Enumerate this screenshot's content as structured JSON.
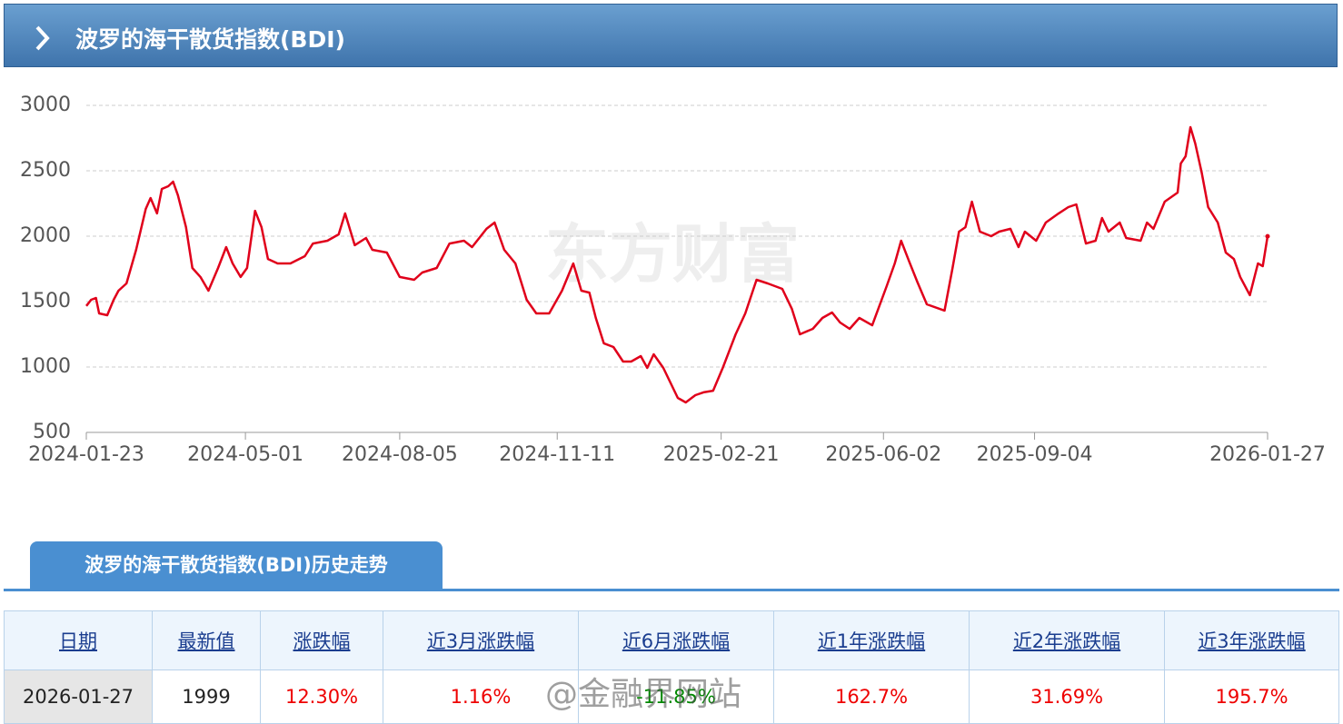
{
  "header": {
    "title": "波罗的海干散货指数(BDI)"
  },
  "chart_data": {
    "type": "line",
    "color": "#e0001b",
    "grid": true,
    "watermark": "东方财富",
    "x": [
      "2024-01-23",
      "2024-01-26",
      "2024-01-29",
      "2024-01-31",
      "2024-02-05",
      "2024-02-09",
      "2024-02-12",
      "2024-02-17",
      "2024-02-23",
      "2024-02-29",
      "2024-03-03",
      "2024-03-07",
      "2024-03-10",
      "2024-03-14",
      "2024-03-17",
      "2024-03-20",
      "2024-03-25",
      "2024-03-29",
      "2024-04-03",
      "2024-04-08",
      "2024-04-14",
      "2024-04-19",
      "2024-04-23",
      "2024-04-28",
      "2024-05-02",
      "2024-05-07",
      "2024-05-11",
      "2024-05-15",
      "2024-05-21",
      "2024-05-29",
      "2024-06-07",
      "2024-06-12",
      "2024-06-21",
      "2024-06-28",
      "2024-07-02",
      "2024-07-08",
      "2024-07-15",
      "2024-07-19",
      "2024-07-28",
      "2024-08-05",
      "2024-08-14",
      "2024-08-19",
      "2024-08-28",
      "2024-09-05",
      "2024-09-14",
      "2024-09-19",
      "2024-09-28",
      "2024-10-03",
      "2024-10-09",
      "2024-10-16",
      "2024-10-23",
      "2024-10-29",
      "2024-11-06",
      "2024-11-14",
      "2024-11-21",
      "2024-11-26",
      "2024-12-01",
      "2024-12-05",
      "2024-12-10",
      "2024-12-16",
      "2024-12-22",
      "2024-12-27",
      "2025-01-02",
      "2025-01-06",
      "2025-01-10",
      "2025-01-16",
      "2025-01-25",
      "2025-01-30",
      "2025-02-05",
      "2025-02-10",
      "2025-02-16",
      "2025-02-22",
      "2025-03-02",
      "2025-03-08",
      "2025-03-15",
      "2025-03-22",
      "2025-03-31",
      "2025-04-06",
      "2025-04-11",
      "2025-04-19",
      "2025-04-25",
      "2025-05-01",
      "2025-05-06",
      "2025-05-12",
      "2025-05-18",
      "2025-05-26",
      "2025-06-04",
      "2025-06-09",
      "2025-06-13",
      "2025-06-18",
      "2025-06-23",
      "2025-06-29",
      "2025-07-10",
      "2025-07-15",
      "2025-07-19",
      "2025-07-23",
      "2025-07-27",
      "2025-08-01",
      "2025-08-08",
      "2025-08-13",
      "2025-08-20",
      "2025-08-25",
      "2025-08-29",
      "2025-09-05",
      "2025-09-11",
      "2025-09-19",
      "2025-09-25",
      "2025-09-30",
      "2025-10-06",
      "2025-10-12",
      "2025-10-16",
      "2025-10-20",
      "2025-10-27",
      "2025-10-31",
      "2025-11-09",
      "2025-11-13",
      "2025-11-17",
      "2025-11-24",
      "2025-12-02",
      "2025-12-04",
      "2025-12-07",
      "2025-12-10",
      "2025-12-13",
      "2025-12-17",
      "2025-12-21",
      "2025-12-27",
      "2026-01-01",
      "2026-01-06",
      "2026-01-10",
      "2026-01-16",
      "2026-01-21",
      "2026-01-24",
      "2026-01-27"
    ],
    "values": [
      1467,
      1514,
      1528,
      1410,
      1396,
      1514,
      1583,
      1639,
      1896,
      2208,
      2292,
      2174,
      2361,
      2382,
      2417,
      2313,
      2069,
      1757,
      1688,
      1583,
      1757,
      1917,
      1792,
      1688,
      1757,
      2194,
      2069,
      1826,
      1792,
      1792,
      1847,
      1944,
      1965,
      2014,
      2174,
      1931,
      1986,
      1896,
      1875,
      1688,
      1667,
      1722,
      1757,
      1944,
      1965,
      1917,
      2056,
      2104,
      1896,
      1792,
      1514,
      1410,
      1410,
      1583,
      1792,
      1583,
      1569,
      1375,
      1181,
      1153,
      1042,
      1042,
      1083,
      993,
      1097,
      993,
      764,
      729,
      785,
      806,
      819,
      993,
      1250,
      1410,
      1667,
      1639,
      1597,
      1444,
      1250,
      1292,
      1375,
      1417,
      1340,
      1292,
      1375,
      1319,
      1618,
      1792,
      1965,
      1806,
      1653,
      1479,
      1431,
      1757,
      2035,
      2069,
      2264,
      2035,
      2000,
      2035,
      2056,
      1917,
      2035,
      1965,
      2104,
      2174,
      2222,
      2243,
      1944,
      1965,
      2139,
      2035,
      2104,
      1986,
      1965,
      2104,
      2056,
      2264,
      2333,
      2556,
      2611,
      2833,
      2708,
      2486,
      2222,
      2104,
      1875,
      1826,
      1688,
      1549,
      1792,
      1771,
      1999
    ],
    "xlim": [
      "2024-01-23",
      "2026-01-27"
    ],
    "xticks": [
      "2024-01-23",
      "2024-05-01",
      "2024-08-05",
      "2024-11-11",
      "2025-02-21",
      "2025-06-02",
      "2025-09-04",
      "2026-01-27"
    ],
    "ylim": [
      500,
      3000
    ],
    "yticks": [
      500,
      1000,
      1500,
      2000,
      2500,
      3000
    ]
  },
  "tab": {
    "title": "波罗的海干散货指数(BDI)历史走势"
  },
  "table": {
    "columns": [
      "日期",
      "最新值",
      "涨跌幅",
      "近3月涨跌幅",
      "近6月涨跌幅",
      "近1年涨跌幅",
      "近2年涨跌幅",
      "近3年涨跌幅"
    ],
    "rows": [
      [
        "2026-01-27",
        "1999",
        "12.30%",
        "1.16%",
        "-11.85%",
        "162.7%",
        "31.69%",
        "195.7%"
      ]
    ]
  },
  "overlay_watermark": "@金融界网站"
}
